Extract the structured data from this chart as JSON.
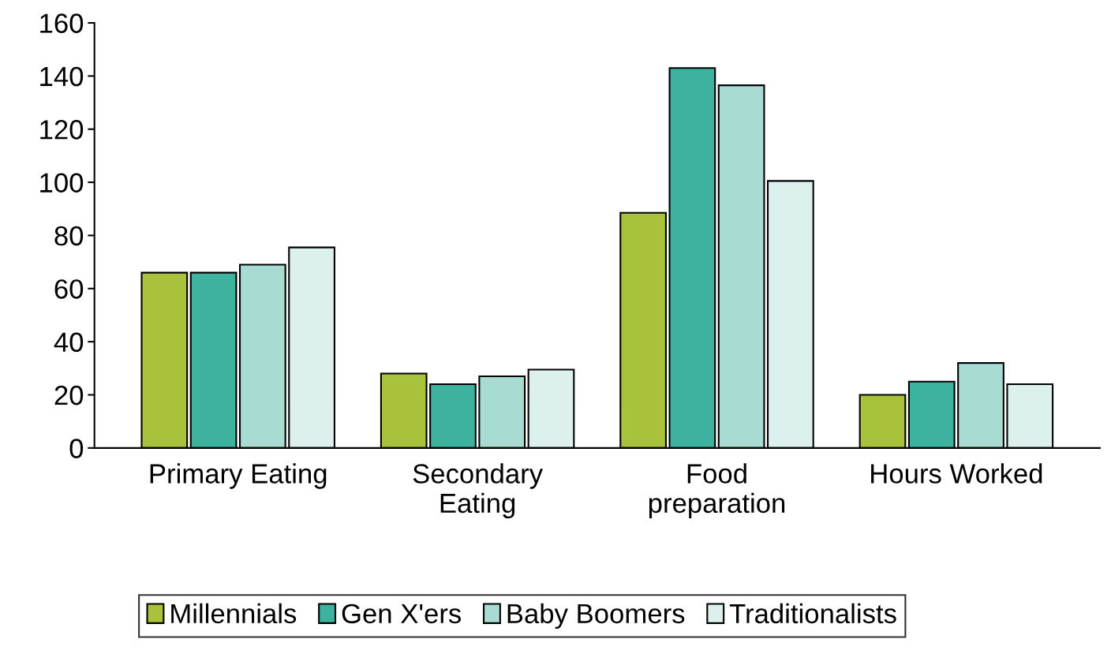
{
  "chart_data": {
    "type": "bar",
    "categories": [
      "Primary Eating",
      "Secondary\nEating",
      "Food\npreparation",
      "Hours Worked"
    ],
    "series": [
      {
        "name": "Millennials",
        "color": "#a9c23c",
        "values": [
          66,
          28,
          88.5,
          20
        ]
      },
      {
        "name": "Gen X'ers",
        "color": "#3db39f",
        "values": [
          66,
          24,
          143,
          25
        ]
      },
      {
        "name": "Baby Boomers",
        "color": "#a8dcd3",
        "values": [
          69,
          27,
          136.5,
          32
        ]
      },
      {
        "name": "Traditionalists",
        "color": "#dcf1ed",
        "values": [
          75.5,
          29.5,
          100.5,
          24
        ]
      }
    ],
    "ylim": [
      0,
      160
    ],
    "yticks": [
      0,
      20,
      40,
      60,
      80,
      100,
      120,
      140,
      160
    ],
    "grid": false,
    "legend": "bottom"
  }
}
